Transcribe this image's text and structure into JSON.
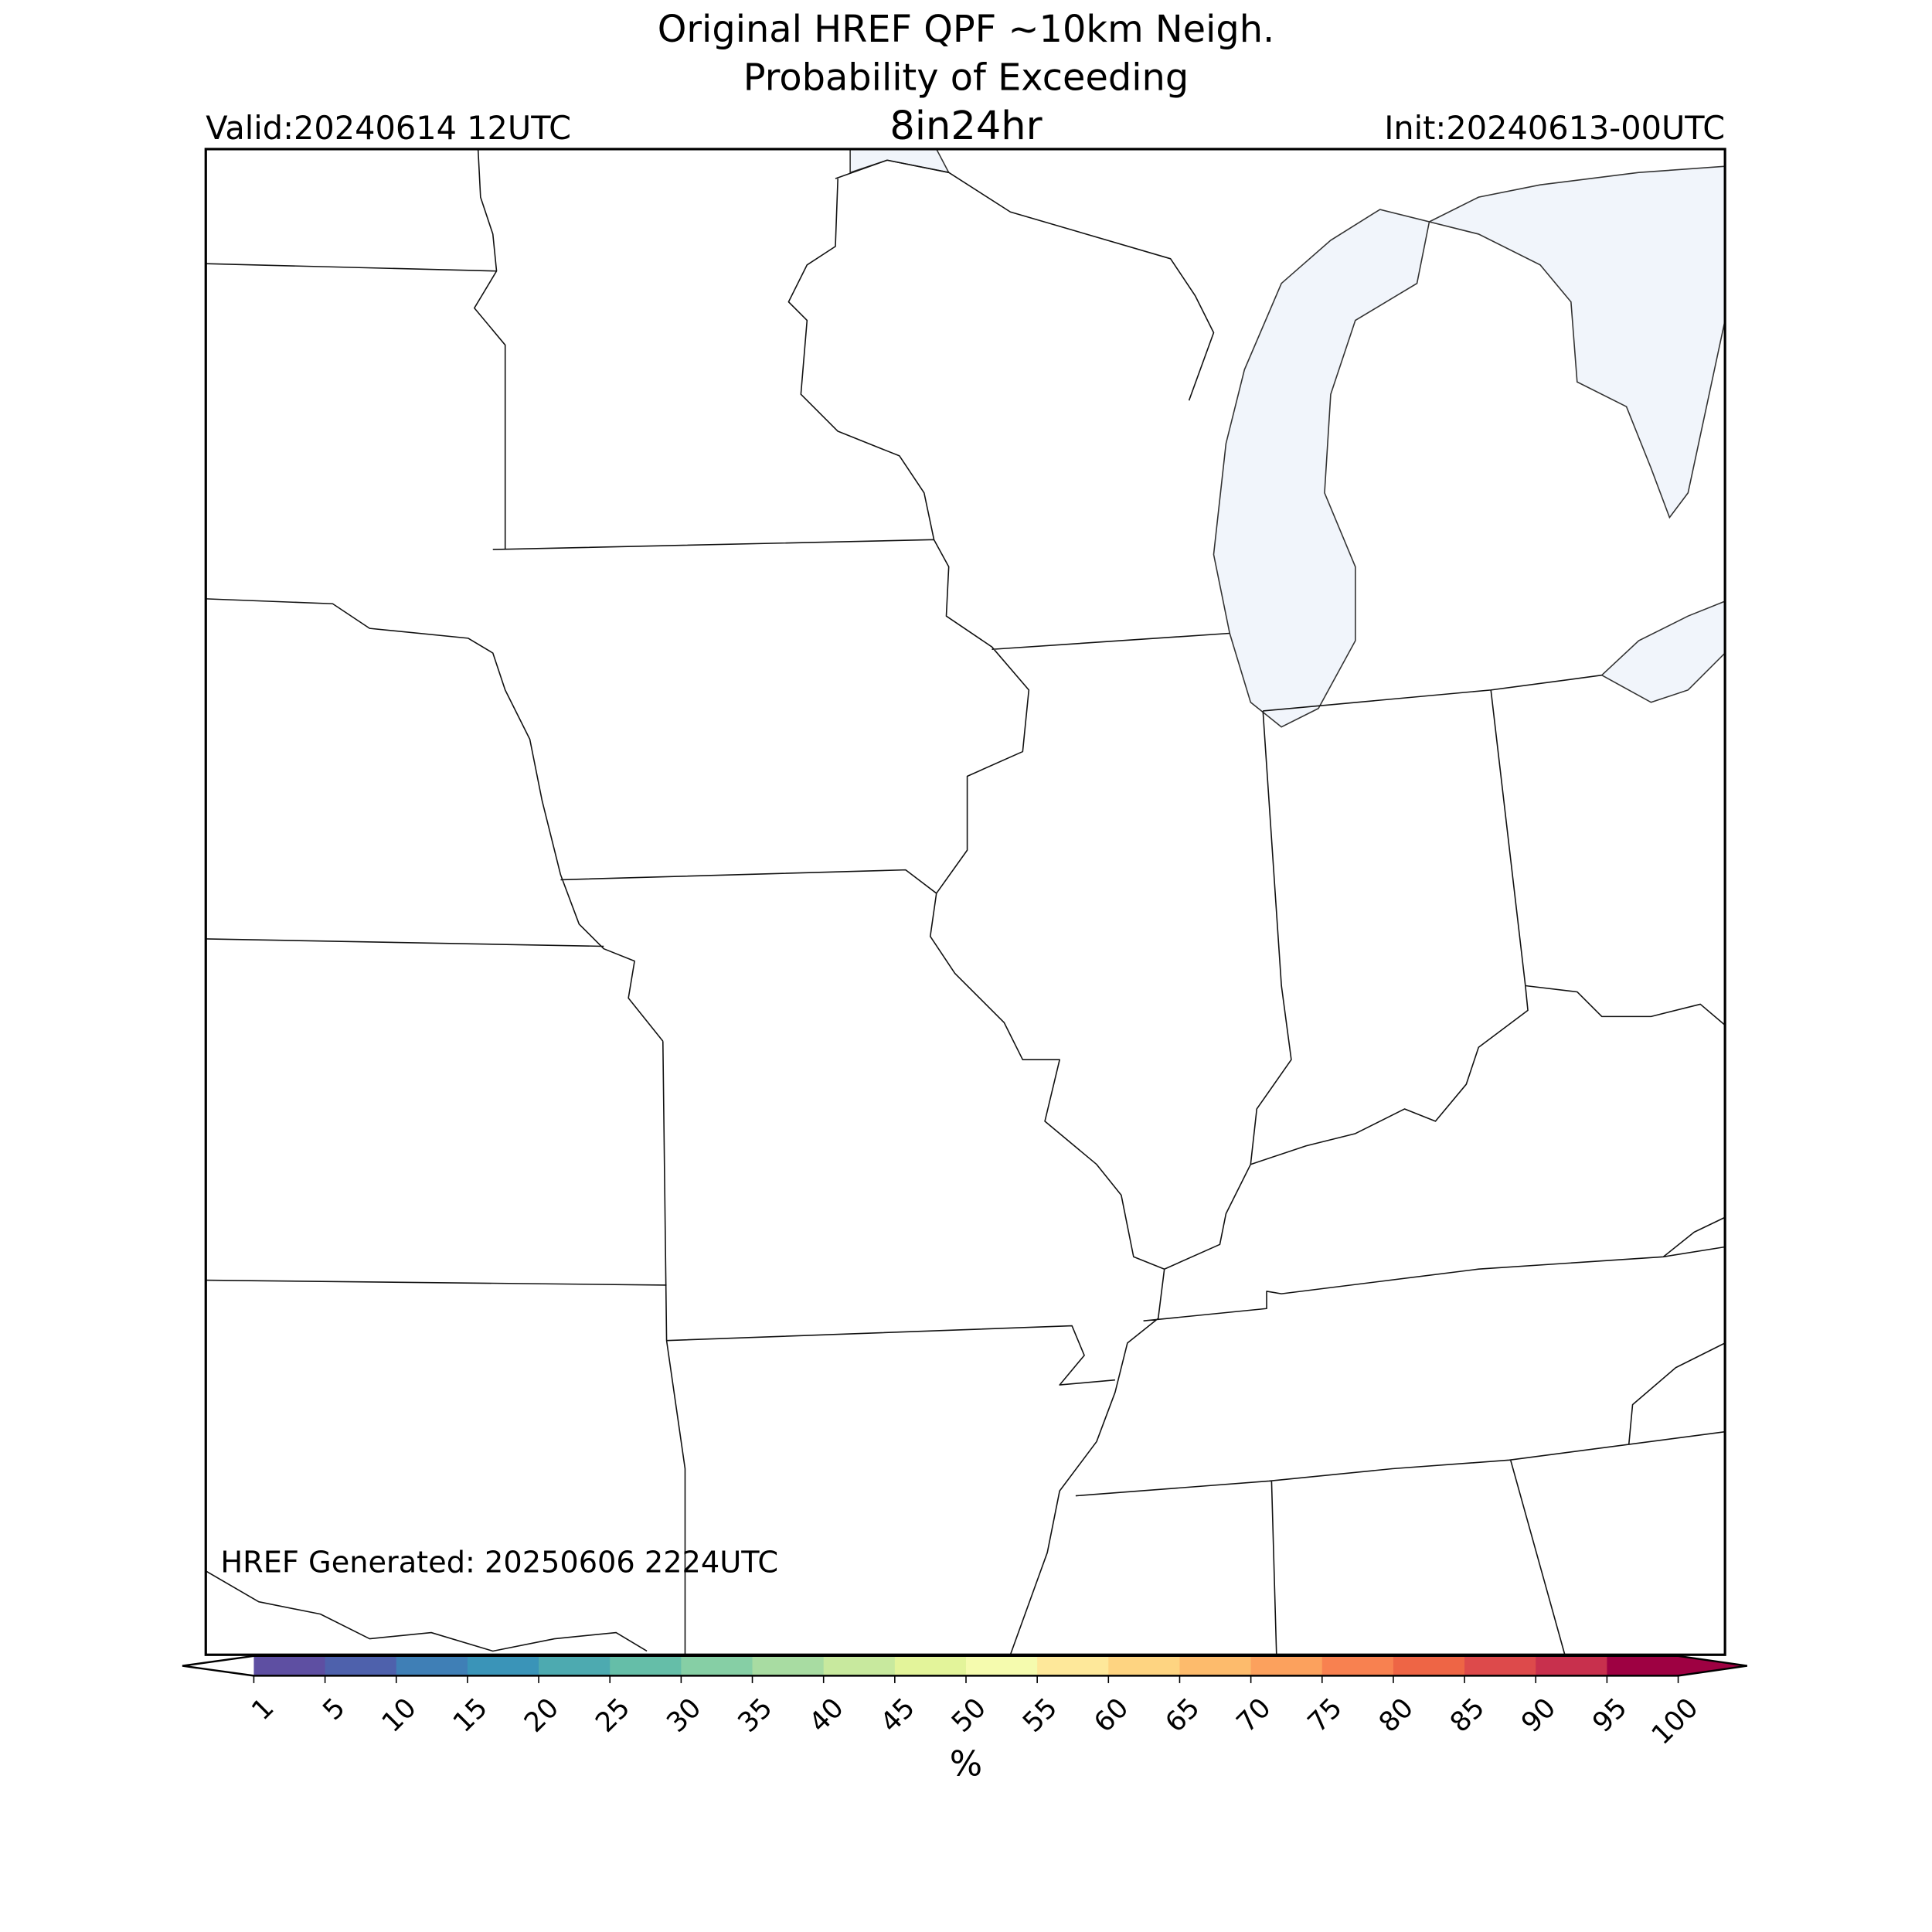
{
  "header": {
    "title_lines": [
      "Original HREF QPF ~10km Neigh.",
      "Probability of Exceeding"
    ],
    "threshold": "8in24hr",
    "valid": "Valid:20240614 12UTC",
    "init": "Init:20240613-00UTC"
  },
  "map": {
    "generated": "HREF Generated: 20250606 2224UTC"
  },
  "colorbar": {
    "label": "%",
    "ticks": [
      1,
      5,
      10,
      15,
      20,
      25,
      30,
      35,
      40,
      45,
      50,
      55,
      60,
      65,
      70,
      75,
      80,
      85,
      90,
      95,
      100
    ],
    "colors": [
      "#5e4fa2",
      "#4e61ac",
      "#3f7fb6",
      "#3a94b8",
      "#4daab0",
      "#65bea8",
      "#86cfa5",
      "#a8dca2",
      "#c8e99e",
      "#e3f49a",
      "#f5fbae",
      "#fee89a",
      "#fed481",
      "#fdbb6c",
      "#fca15d",
      "#f88150",
      "#ee6545",
      "#dd4a4b",
      "#c8304d",
      "#9e0142"
    ],
    "under_color": "#ffffff",
    "over_color": "#9e0142"
  }
}
